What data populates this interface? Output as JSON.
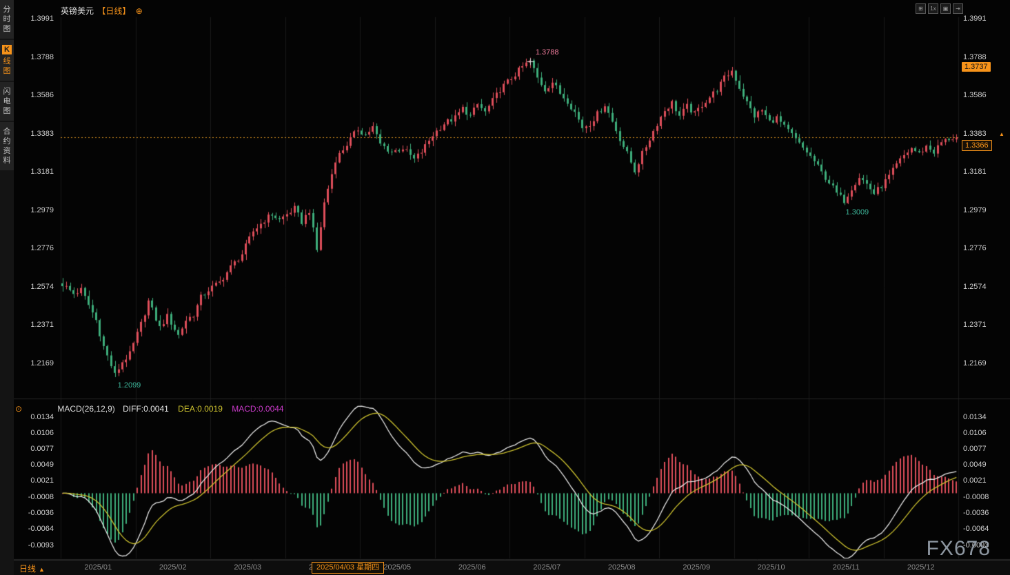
{
  "app": {
    "title_symbol": "英镑美元",
    "title_period": "【日线】",
    "plus_icon": "⊕",
    "watermark": "FX678"
  },
  "sidebar": {
    "items": [
      {
        "label": "分时图"
      },
      {
        "badge": "K",
        "label": "线图"
      },
      {
        "label": "闪电图"
      },
      {
        "label": "合约资料"
      }
    ]
  },
  "toolbar": {
    "icons": [
      {
        "name": "grid-layout-icon",
        "glyph": "⊞"
      },
      {
        "name": "scale-1x-icon",
        "glyph": "1x"
      },
      {
        "name": "single-panel-icon",
        "glyph": "▣"
      },
      {
        "name": "expand-panel-icon",
        "glyph": "⇥"
      }
    ]
  },
  "bottom_bar": {
    "period_label": "日线",
    "arrow": "▲",
    "highlight_date": "2025/04/03 星期四"
  },
  "chart_data": {
    "type": "candlestick",
    "title": "英镑美元 日线 (GBP/USD Daily)",
    "x_labels": [
      "2025/01",
      "2025/02",
      "2025/03",
      "2025/04",
      "2025/05",
      "2025/06",
      "2025/07",
      "2025/08",
      "2025/09",
      "2025/10",
      "2025/11",
      "2025/12"
    ],
    "y_ticks": [
      "1.3991",
      "1.3788",
      "1.3586",
      "1.3383",
      "1.3181",
      "1.2979",
      "1.2776",
      "1.2574",
      "1.2371",
      "1.2169"
    ],
    "price_tags": {
      "upper": "1.3737",
      "current": "1.3366"
    },
    "annotations": {
      "peak": "1.3788",
      "jan_low": "1.2099",
      "nov_low": "1.3009"
    },
    "candle_count": 240,
    "anchors": [
      [
        0,
        1.259
      ],
      [
        3,
        1.254
      ],
      [
        5,
        1.256
      ],
      [
        7,
        1.248
      ],
      [
        9,
        1.24
      ],
      [
        11,
        1.226
      ],
      [
        14,
        1.211
      ],
      [
        16,
        1.218
      ],
      [
        18,
        1.222
      ],
      [
        21,
        1.238
      ],
      [
        23,
        1.25
      ],
      [
        26,
        1.236
      ],
      [
        28,
        1.242
      ],
      [
        31,
        1.232
      ],
      [
        33,
        1.24
      ],
      [
        35,
        1.243
      ],
      [
        37,
        1.252
      ],
      [
        39,
        1.256
      ],
      [
        42,
        1.26
      ],
      [
        45,
        1.268
      ],
      [
        48,
        1.275
      ],
      [
        51,
        1.287
      ],
      [
        54,
        1.293
      ],
      [
        56,
        1.296
      ],
      [
        58,
        1.293
      ],
      [
        60,
        1.296
      ],
      [
        62,
        1.299
      ],
      [
        64,
        1.292
      ],
      [
        66,
        1.298
      ],
      [
        68,
        1.277
      ],
      [
        70,
        1.302
      ],
      [
        73,
        1.325
      ],
      [
        76,
        1.333
      ],
      [
        79,
        1.341
      ],
      [
        81,
        1.338
      ],
      [
        83,
        1.342
      ],
      [
        85,
        1.333
      ],
      [
        88,
        1.329
      ],
      [
        91,
        1.331
      ],
      [
        94,
        1.325
      ],
      [
        96,
        1.329
      ],
      [
        99,
        1.338
      ],
      [
        102,
        1.344
      ],
      [
        105,
        1.347
      ],
      [
        107,
        1.352
      ],
      [
        109,
        1.348
      ],
      [
        111,
        1.354
      ],
      [
        113,
        1.35
      ],
      [
        115,
        1.356
      ],
      [
        117,
        1.362
      ],
      [
        119,
        1.366
      ],
      [
        121,
        1.37
      ],
      [
        123,
        1.374
      ],
      [
        125,
        1.377
      ],
      [
        127,
        1.368
      ],
      [
        129,
        1.362
      ],
      [
        131,
        1.366
      ],
      [
        133,
        1.36
      ],
      [
        135,
        1.356
      ],
      [
        137,
        1.35
      ],
      [
        139,
        1.342
      ],
      [
        141,
        1.344
      ],
      [
        143,
        1.349
      ],
      [
        145,
        1.354
      ],
      [
        147,
        1.345
      ],
      [
        149,
        1.336
      ],
      [
        151,
        1.328
      ],
      [
        153,
        1.319
      ],
      [
        155,
        1.328
      ],
      [
        157,
        1.336
      ],
      [
        159,
        1.344
      ],
      [
        161,
        1.351
      ],
      [
        163,
        1.355
      ],
      [
        165,
        1.348
      ],
      [
        167,
        1.353
      ],
      [
        169,
        1.349
      ],
      [
        171,
        1.354
      ],
      [
        173,
        1.358
      ],
      [
        175,
        1.362
      ],
      [
        177,
        1.368
      ],
      [
        179,
        1.372
      ],
      [
        181,
        1.363
      ],
      [
        183,
        1.355
      ],
      [
        185,
        1.348
      ],
      [
        187,
        1.351
      ],
      [
        189,
        1.345
      ],
      [
        191,
        1.347
      ],
      [
        193,
        1.342
      ],
      [
        195,
        1.338
      ],
      [
        197,
        1.333
      ],
      [
        199,
        1.329
      ],
      [
        201,
        1.324
      ],
      [
        203,
        1.318
      ],
      [
        205,
        1.313
      ],
      [
        207,
        1.307
      ],
      [
        209,
        1.303
      ],
      [
        211,
        1.31
      ],
      [
        213,
        1.316
      ],
      [
        215,
        1.312
      ],
      [
        217,
        1.307
      ],
      [
        219,
        1.311
      ],
      [
        221,
        1.316
      ],
      [
        223,
        1.322
      ],
      [
        225,
        1.327
      ],
      [
        227,
        1.331
      ],
      [
        229,
        1.328
      ],
      [
        231,
        1.332
      ],
      [
        233,
        1.329
      ],
      [
        235,
        1.334
      ],
      [
        237,
        1.336
      ],
      [
        239,
        1.3366
      ]
    ],
    "key_points": {
      "low_index": 14,
      "low_price": 1.2099,
      "peak_index": 125,
      "peak_price": 1.3788,
      "nov_low_index": 209,
      "nov_low_price": 1.3009,
      "last_close": 1.3366,
      "last_high": 1.3383
    },
    "colors": {
      "up": "#de4e5a",
      "down": "#3eae7b",
      "diff_line": "#e8e8e8",
      "dea_line": "#cdc22f",
      "hist_pos": "#de4e5a",
      "hist_neg": "#3eae7b",
      "accent": "#f7931a",
      "last_price_line": "#c8871f",
      "grid": "#1a1a1a",
      "divider": "#242424"
    },
    "macd": {
      "type": "macd",
      "label": "MACD(26,12,9)",
      "diff": "DIFF:0.0041",
      "dea": "DEA:0.0019",
      "macd": "MACD:0.0044",
      "y_ticks": [
        "0.0134",
        "0.0106",
        "0.0077",
        "0.0049",
        "0.0021",
        "-0.0008",
        "-0.0036",
        "-0.0064",
        "-0.0093"
      ]
    }
  }
}
